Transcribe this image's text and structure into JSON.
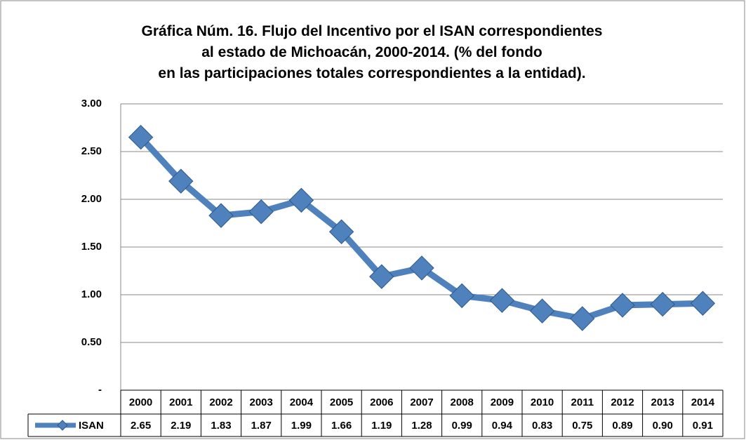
{
  "chart_data": {
    "type": "line",
    "title": "Gráfica Núm. 16. Flujo del Incentivo por el ISAN correspondientes al estado de Michoacán, 2000-2014. (% del fondo en las participaciones totales correspondientes a la entidad).",
    "categories": [
      "2000",
      "2001",
      "2002",
      "2003",
      "2004",
      "2005",
      "2006",
      "2007",
      "2008",
      "2009",
      "2010",
      "2011",
      "2012",
      "2013",
      "2014"
    ],
    "series": [
      {
        "name": "ISAN",
        "color": "#4f81bd",
        "values": [
          2.65,
          2.19,
          1.83,
          1.87,
          1.99,
          1.66,
          1.19,
          1.28,
          0.99,
          0.94,
          0.83,
          0.75,
          0.89,
          0.9,
          0.91
        ],
        "value_labels": [
          "2.65",
          "2.19",
          "1.83",
          "1.87",
          "1.99",
          "1.66",
          "1.19",
          "1.28",
          "0.99",
          "0.94",
          "0.83",
          "0.75",
          "0.89",
          "0.90",
          "0.91"
        ]
      }
    ],
    "ylim": [
      0,
      3
    ],
    "yticks": [
      {
        "value": 0,
        "label": "-"
      },
      {
        "value": 0.5,
        "label": "0.50"
      },
      {
        "value": 1,
        "label": "1.00"
      },
      {
        "value": 1.5,
        "label": "1.50"
      },
      {
        "value": 2,
        "label": "2.00"
      },
      {
        "value": 2.5,
        "label": "2.50"
      },
      {
        "value": 3,
        "label": "3.00"
      }
    ],
    "grid": true
  }
}
